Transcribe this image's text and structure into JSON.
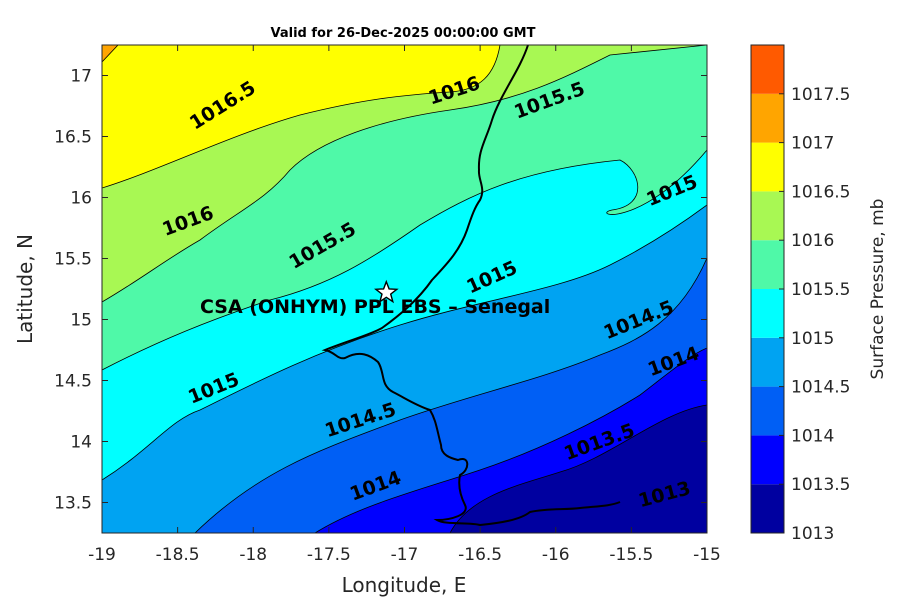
{
  "title": "Valid for 26-Dec-2025 00:00:00 GMT",
  "xlabel": "Longitude, E",
  "ylabel": "Latitude, N",
  "colorbar_label": "Surface Pressure, mb",
  "site_label": "CSA (ONHYM) PPL EBS  – Senegal",
  "site_marker": "star-icon",
  "chart_data": {
    "type": "heatmap",
    "subtype": "filled-contour-map",
    "xlim": [
      -19,
      -15
    ],
    "ylim": [
      13.25,
      17.25
    ],
    "x_ticks": [
      "-19",
      "-18.5",
      "-18",
      "-17.5",
      "-17",
      "-16.5",
      "-16",
      "-15.5",
      "-15"
    ],
    "y_ticks": [
      "13.5",
      "14",
      "14.5",
      "15",
      "15.5",
      "16",
      "16.5",
      "17"
    ],
    "site": {
      "lon": -17.12,
      "lat": 15.22
    },
    "levels": [
      {
        "value": 1013,
        "label": "1013",
        "color": "#0000a0"
      },
      {
        "value": 1013.5,
        "label": "1013.5",
        "color": "#0000ff"
      },
      {
        "value": 1014,
        "label": "1014",
        "color": "#005ff5"
      },
      {
        "value": 1014.5,
        "label": "1014.5",
        "color": "#00a3f2"
      },
      {
        "value": 1015,
        "label": "1015",
        "color": "#00ffff"
      },
      {
        "value": 1015.5,
        "label": "1015.5",
        "color": "#4ff9a8"
      },
      {
        "value": 1016,
        "label": "1016",
        "color": "#a8f853"
      },
      {
        "value": 1016.5,
        "label": "1016.5",
        "color": "#ffff00"
      },
      {
        "value": 1017,
        "label": "1017",
        "color": "#ffa500"
      },
      {
        "value": 1017.5,
        "label": "1017.5",
        "color": "#ff5a00"
      }
    ],
    "contour_labels": [
      {
        "text": "1016.5",
        "lon": -18.2,
        "lat": 16.75,
        "angle": -32
      },
      {
        "text": "1016",
        "lon": -16.67,
        "lat": 16.87,
        "angle": -18
      },
      {
        "text": "1015.5",
        "lon": -16.04,
        "lat": 16.79,
        "angle": -20
      },
      {
        "text": "1015",
        "lon": -15.23,
        "lat": 16.05,
        "angle": -22
      },
      {
        "text": "1016",
        "lon": -18.43,
        "lat": 15.8,
        "angle": -20
      },
      {
        "text": "1015.5",
        "lon": -17.54,
        "lat": 15.6,
        "angle": -30
      },
      {
        "text": "1015",
        "lon": -16.42,
        "lat": 15.34,
        "angle": -24
      },
      {
        "text": "1014.5",
        "lon": -15.45,
        "lat": 14.99,
        "angle": -22
      },
      {
        "text": "1014",
        "lon": -15.22,
        "lat": 14.65,
        "angle": -20
      },
      {
        "text": "1015",
        "lon": -18.26,
        "lat": 14.43,
        "angle": -22
      },
      {
        "text": "1014.5",
        "lon": -17.29,
        "lat": 14.17,
        "angle": -18
      },
      {
        "text": "1013.5",
        "lon": -15.71,
        "lat": 13.99,
        "angle": -20
      },
      {
        "text": "1014",
        "lon": -17.19,
        "lat": 13.63,
        "angle": -20
      },
      {
        "text": "1013",
        "lon": -15.28,
        "lat": 13.56,
        "angle": -15
      }
    ]
  }
}
